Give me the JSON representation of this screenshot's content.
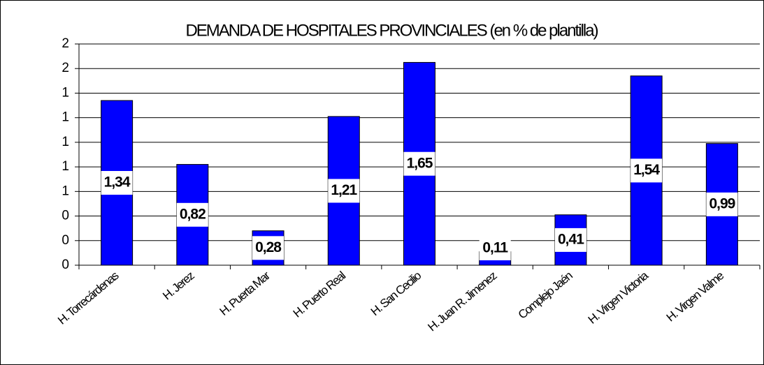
{
  "chart_data": {
    "type": "bar",
    "title": "DEMANDA DE HOSPITALES PROVINCIALES (en % de plantilla)",
    "categories": [
      "H. Torrecárdenas",
      "H. Jerez",
      "H. Puerta Mar",
      "H. Puerto Real",
      "H. San Cecilio",
      "H. Juan R. Jimenez",
      "Complejo Jaén",
      "H. Virgen Victoria",
      "H. Virgen Valme"
    ],
    "values": [
      1.34,
      0.82,
      0.28,
      1.21,
      1.65,
      0.11,
      0.41,
      1.54,
      0.99
    ],
    "value_labels": [
      "1,34",
      "0,82",
      "0,28",
      "1,21",
      "1,65",
      "0,11",
      "0,41",
      "1,54",
      "0,99"
    ],
    "color": "#0000ff",
    "ylim": [
      0,
      1.8
    ],
    "yticks": [
      0,
      {
        "value": 0.2,
        "label": "0"
      },
      {
        "value": 0.4,
        "label": "0"
      },
      {
        "value": 0.6,
        "label": "1"
      },
      {
        "value": 0.8,
        "label": "1"
      },
      1,
      {
        "value": 1.2,
        "label": "1"
      },
      {
        "value": 1.4,
        "label": "1"
      },
      {
        "value": 1.6,
        "label": "2"
      },
      {
        "value": 1.8,
        "label": "2"
      }
    ],
    "grid": true
  }
}
